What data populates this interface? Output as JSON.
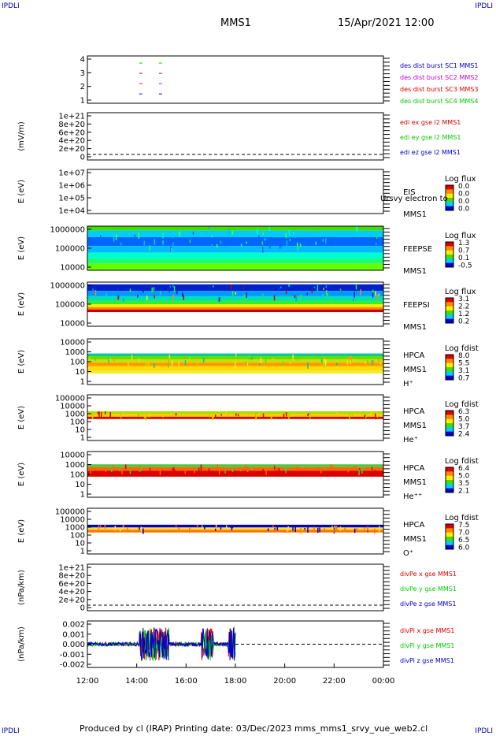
{
  "corners": {
    "tl": "IPDLI",
    "tr": "IPDLI",
    "bl": "IPDLI",
    "br": "IPDLI"
  },
  "header": {
    "spacecraft": "MMS1",
    "datetime": "15/Apr/2021 12:00"
  },
  "footer": "Produced by cl (IRAP)   Printing date: 03/Dec/2023   mms_mms1_srvy_vue_web2.cl",
  "colors": {
    "blue": "#0000cc",
    "green": "#00cc00",
    "red": "#dd0000",
    "magenta": "#cc00cc"
  },
  "chart_data": {
    "type": "multi-panel time series and spectrograms",
    "x_tick_labels": [
      "12:00",
      "14:00",
      "16:00",
      "18:00",
      "20:00",
      "22:00",
      "00:00"
    ],
    "x_range_hours": [
      12,
      24
    ],
    "panels": [
      {
        "id": "burst",
        "type": "scatter",
        "ylabel": "",
        "y_ticks": [
          "4",
          "3",
          "2",
          "1"
        ],
        "legend": [
          {
            "text": "des dist burst SC1 MMS1",
            "color": "#0000cc"
          },
          {
            "text": "des dist burst SC2 MMS2",
            "color": "#cc00cc"
          },
          {
            "text": "des dist burst SC3 MMS3",
            "color": "#dd0000"
          },
          {
            "text": "des dist burst SC4 MMS4",
            "color": "#00cc00"
          }
        ],
        "segments": [
          {
            "level": 4,
            "color": "#00cc00",
            "t": [
              [
                14.1,
                14.4
              ],
              [
                14.9,
                15.0
              ]
            ]
          },
          {
            "level": 3,
            "color": "#dd0000",
            "t": [
              [
                14.1,
                14.4
              ],
              [
                14.9,
                15.0
              ]
            ]
          },
          {
            "level": 2,
            "color": "#cc00cc",
            "t": [
              [
                14.1,
                14.4
              ],
              [
                14.9,
                15.0
              ]
            ]
          },
          {
            "level": 1,
            "color": "#0000cc",
            "t": [
              [
                14.1,
                14.4
              ],
              [
                14.9,
                15.0
              ]
            ]
          }
        ]
      },
      {
        "id": "edi",
        "type": "line",
        "ylabel": "(mV/m)",
        "y_ticks": [
          "1e+21",
          "8e+20",
          "6e+20",
          "4e+20",
          "2e+20",
          "0"
        ],
        "legend": [
          {
            "text": "edi ex gse l2 MMS1",
            "color": "#dd0000"
          },
          {
            "text": "edi ey gse l2 MMS1",
            "color": "#00cc00"
          },
          {
            "text": "edi ez gse l2 MMS1",
            "color": "#0000cc"
          }
        ]
      },
      {
        "id": "eis",
        "type": "heatmap",
        "ylabel": "E (eV)",
        "y_ticks": [
          "1e+07",
          "1e+06",
          "1e+05",
          "1e+04"
        ],
        "labels": [
          "EIS",
          "MMS1"
        ],
        "overflow_label": "Ursvy electron to",
        "cbar_title": "Log flux",
        "cbar_ticks": [
          "0.0",
          "0.0",
          "0.0",
          "0.0"
        ],
        "bands": []
      },
      {
        "id": "feeps_e",
        "type": "heatmap",
        "ylabel": "E (eV)",
        "y_ticks": [
          "1000000",
          "100000",
          "10000"
        ],
        "labels": [
          "FEEPSE",
          "MMS1"
        ],
        "cbar_title": "Log flux",
        "cbar_ticks": [
          "1.3",
          "0.7",
          "0.1",
          "-0.5"
        ],
        "bands": [
          {
            "from": 0.0,
            "to": 0.1,
            "color": "#44dd00"
          },
          {
            "from": 0.1,
            "to": 0.25,
            "color": "#00ccff"
          },
          {
            "from": 0.25,
            "to": 0.45,
            "color": "#0066ff"
          },
          {
            "from": 0.45,
            "to": 0.6,
            "color": "#00bbff"
          },
          {
            "from": 0.6,
            "to": 0.75,
            "color": "#00ffcc"
          },
          {
            "from": 0.75,
            "to": 0.85,
            "color": "#22ff66"
          },
          {
            "from": 0.85,
            "to": 1.0,
            "color": "#66ff00"
          }
        ]
      },
      {
        "id": "feeps_i",
        "type": "heatmap",
        "ylabel": "E (eV)",
        "y_ticks": [
          "1000000",
          "100000",
          "10000"
        ],
        "labels": [
          "FEEPSI",
          "MMS1"
        ],
        "cbar_title": "Log flux",
        "cbar_ticks": [
          "3.1",
          "2.2",
          "1.2",
          "0.2"
        ],
        "bands": [
          {
            "from": 0.05,
            "to": 0.2,
            "color": "#0022cc"
          },
          {
            "from": 0.2,
            "to": 0.32,
            "color": "#0099ff"
          },
          {
            "from": 0.32,
            "to": 0.42,
            "color": "#00ddbb"
          },
          {
            "from": 0.42,
            "to": 0.5,
            "color": "#33ee33"
          },
          {
            "from": 0.5,
            "to": 0.57,
            "color": "#ffee00"
          },
          {
            "from": 0.57,
            "to": 0.62,
            "color": "#ff8800"
          },
          {
            "from": 0.62,
            "to": 0.68,
            "color": "#cc0000"
          }
        ]
      },
      {
        "id": "hpca_h",
        "type": "heatmap",
        "ylabel": "E (eV)",
        "y_ticks": [
          "10000",
          "1000",
          "100",
          "10",
          "1"
        ],
        "labels": [
          "HPCA",
          "MMS1",
          "H⁺"
        ],
        "cbar_title": "Log fdist",
        "cbar_ticks": [
          "8.0",
          "5.5",
          "3.1",
          "0.7"
        ],
        "bands": [
          {
            "from": 0.32,
            "to": 0.38,
            "color": "#00cc99"
          },
          {
            "from": 0.38,
            "to": 0.45,
            "color": "#66dd00"
          },
          {
            "from": 0.45,
            "to": 0.52,
            "color": "#ccdd00"
          },
          {
            "from": 0.52,
            "to": 0.6,
            "color": "#ff9900"
          },
          {
            "from": 0.6,
            "to": 0.7,
            "color": "#ffdd00"
          },
          {
            "from": 0.7,
            "to": 0.76,
            "color": "#eeee33"
          }
        ]
      },
      {
        "id": "hpca_he",
        "type": "heatmap",
        "ylabel": "E (eV)",
        "y_ticks": [
          "100000",
          "10000",
          "1000",
          "100",
          "10",
          "1"
        ],
        "labels": [
          "HPCA",
          "MMS1",
          "He⁺"
        ],
        "cbar_title": "Log fdist",
        "cbar_ticks": [
          "6.3",
          "5.0",
          "3.7",
          "2.4"
        ],
        "bands": [
          {
            "from": 0.36,
            "to": 0.42,
            "color": "#aadd00"
          },
          {
            "from": 0.42,
            "to": 0.48,
            "color": "#ffcc00"
          },
          {
            "from": 0.48,
            "to": 0.53,
            "color": "#dd0000"
          }
        ]
      },
      {
        "id": "hpca_hepp",
        "type": "heatmap",
        "ylabel": "E (eV)",
        "y_ticks": [
          "10000",
          "1000",
          "100",
          "10",
          "1"
        ],
        "labels": [
          "HPCA",
          "MMS1",
          "He⁺⁺"
        ],
        "cbar_title": "Log fdist",
        "cbar_ticks": [
          "6.4",
          "5.0",
          "3.5",
          "2.1"
        ],
        "bands": [
          {
            "from": 0.28,
            "to": 0.34,
            "color": "#44cc44"
          },
          {
            "from": 0.34,
            "to": 0.42,
            "color": "#ff6600"
          },
          {
            "from": 0.42,
            "to": 0.55,
            "color": "#dd0000"
          }
        ]
      },
      {
        "id": "hpca_o",
        "type": "heatmap",
        "ylabel": "E (eV)",
        "y_ticks": [
          "100000",
          "10000",
          "1000",
          "100",
          "10",
          "1"
        ],
        "labels": [
          "HPCA",
          "MMS1",
          "O⁺"
        ],
        "cbar_title": "Log fdist",
        "cbar_ticks": [
          "7.5",
          "7.0",
          "6.5",
          "6.0"
        ],
        "bands": [
          {
            "from": 0.36,
            "to": 0.42,
            "color": "#0000cc"
          },
          {
            "from": 0.42,
            "to": 0.47,
            "color": "#ffdd33"
          },
          {
            "from": 0.47,
            "to": 0.53,
            "color": "#ff7700"
          }
        ]
      },
      {
        "id": "divpe",
        "type": "line",
        "ylabel": "(nPa/km)",
        "y_ticks": [
          "1e+21",
          "8e+20",
          "6e+20",
          "4e+20",
          "2e+20",
          "0"
        ],
        "legend": [
          {
            "text": "divPe x gse MMS1",
            "color": "#dd0000"
          },
          {
            "text": "divPe y gse MMS1",
            "color": "#00cc00"
          },
          {
            "text": "divPe z gse MMS1",
            "color": "#0000cc"
          }
        ]
      },
      {
        "id": "divpi",
        "type": "line",
        "ylabel": "(nPa/km)",
        "y_ticks": [
          "0.002",
          "0.001",
          "0.000",
          "-0.001",
          "-0.002"
        ],
        "y_range": [
          -0.0025,
          0.0025
        ],
        "data_end_hour": 18.0,
        "legend": [
          {
            "text": "divPi x gse MMS1",
            "color": "#dd0000"
          },
          {
            "text": "divPi y gse MMS1",
            "color": "#00cc00"
          },
          {
            "text": "divPi z gse MMS1",
            "color": "#0000cc"
          }
        ]
      }
    ]
  }
}
